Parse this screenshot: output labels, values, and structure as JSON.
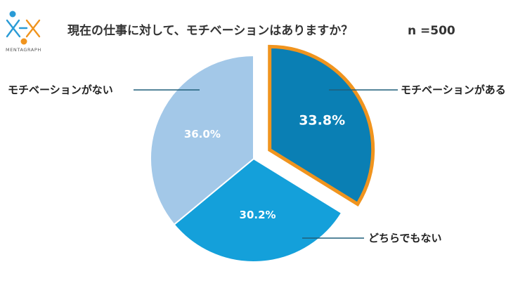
{
  "logo": {
    "text": "MENTAGRAPH",
    "colors": {
      "orange": "#f0941e",
      "blue": "#2a9bd6"
    }
  },
  "header": {
    "question": "現在の仕事に対して、モチベーションはありますか？",
    "sample_size": "n =500"
  },
  "chart_data": {
    "type": "pie",
    "slices": [
      {
        "label": "モチベーションがある",
        "value": 33.8,
        "value_label": "33.8%",
        "color": "#0a7fb4",
        "exploded": true,
        "highlight": "#f0941e"
      },
      {
        "label": "どちらでもない",
        "value": 30.2,
        "value_label": "30.2%",
        "color": "#14a0da"
      },
      {
        "label": "モチベーションがない",
        "value": 36.0,
        "value_label": "36.0%",
        "color": "#a3c8e8"
      }
    ]
  }
}
